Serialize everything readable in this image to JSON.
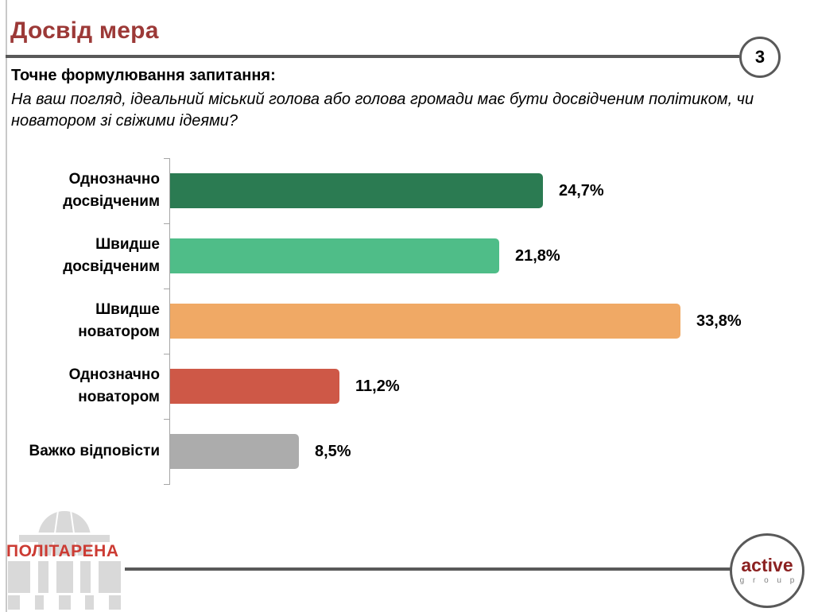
{
  "slide": {
    "title": "Досвід мера",
    "page_number": "3",
    "question_label": "Точне формулювання запитання:",
    "question_text": "На ваш погляд, ідеальний міський голова або голова громади має бути досвідченим політиком, чи новатором зі свіжими ідеями?"
  },
  "chart_data": {
    "type": "bar",
    "orientation": "horizontal",
    "title": "",
    "categories": [
      "Однозначно\nдосвідченим",
      "Швидше\nдосвідченим",
      "Швидше\nноватором",
      "Однозначно\nноватором",
      "Важко відповісти"
    ],
    "values": [
      24.7,
      21.8,
      33.8,
      11.2,
      8.5
    ],
    "value_labels": [
      "24,7%",
      "21,8%",
      "33,8%",
      "11,2%",
      "8,5%"
    ],
    "bar_colors": [
      "#2b7b52",
      "#4fbd88",
      "#f0a965",
      "#ce5847",
      "#acacac"
    ],
    "xlim": [
      0,
      36.8
    ],
    "grid": false,
    "legend": "none",
    "axis_color": "#a6a6a6"
  },
  "footer": {
    "politarena_text": "ПОЛІТАРЕНА",
    "active_group_line1": "active",
    "active_group_line2": "g r o u p"
  },
  "colors": {
    "title_red": "#9c3937",
    "rule_gray": "#595959",
    "politarena_red": "#cc3b33",
    "politarena_gray": "#d9d9d9",
    "active_red": "#8b2121",
    "group_gray": "#7f7f7f"
  }
}
